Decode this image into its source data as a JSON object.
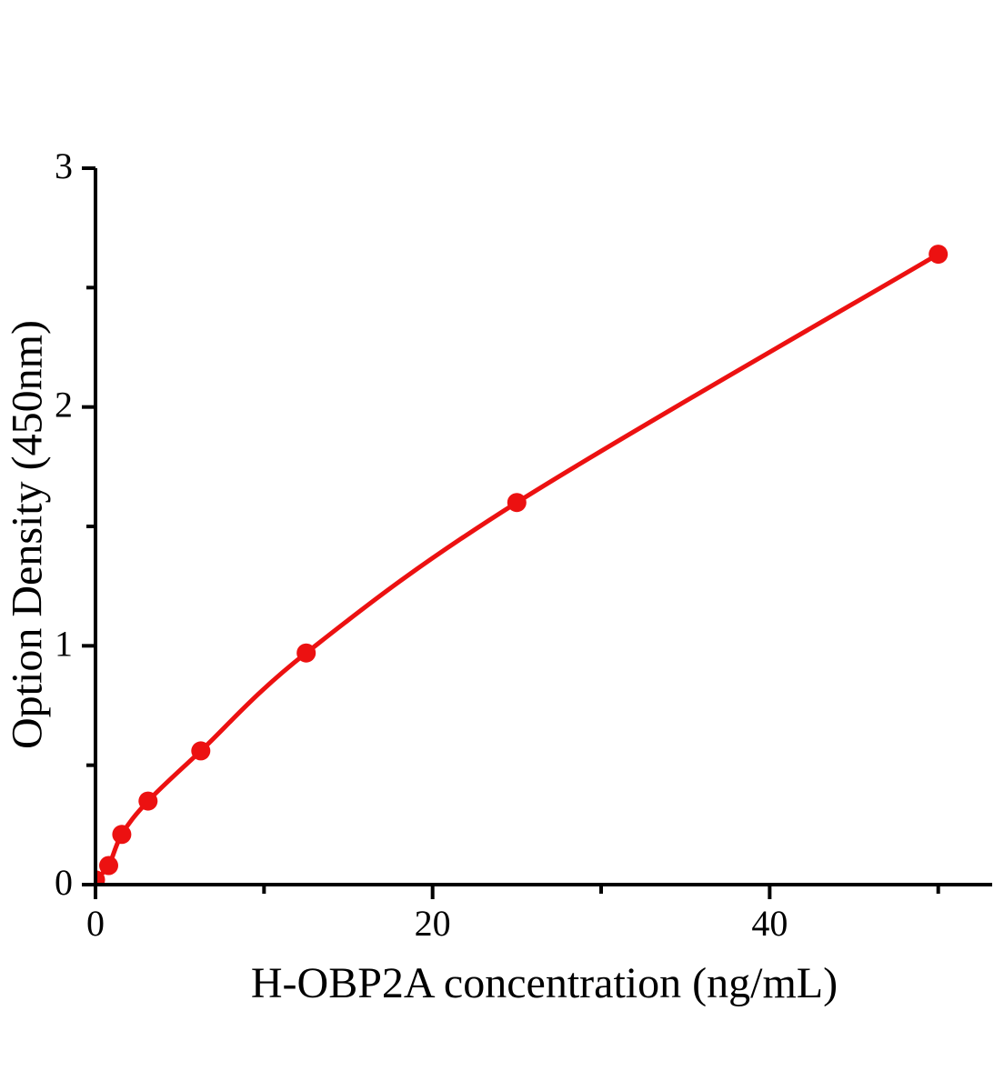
{
  "chart_data": {
    "type": "line",
    "title": "",
    "xlabel": "H-OBP2A concentration (ng/mL)",
    "ylabel": "Option Density (450nm)",
    "x": [
      0,
      0.78,
      1.56,
      3.12,
      6.25,
      12.5,
      25,
      50
    ],
    "y": [
      0.02,
      0.08,
      0.21,
      0.35,
      0.56,
      0.97,
      1.6,
      2.64
    ],
    "xlim": [
      0,
      53.2
    ],
    "ylim": [
      0,
      3
    ],
    "x_major_ticks": [
      0,
      20,
      40
    ],
    "x_minor_ticks": [
      10,
      30,
      50
    ],
    "y_major_ticks": [
      0,
      1,
      2,
      3
    ],
    "y_minor_ticks": [
      0.5,
      1.5,
      2.5
    ],
    "grid": false,
    "legend": "none",
    "marker": "circle",
    "colors": {
      "line": "#ec1111",
      "marker": "#ec1111",
      "axis": "#000000",
      "background": "#ffffff"
    }
  }
}
